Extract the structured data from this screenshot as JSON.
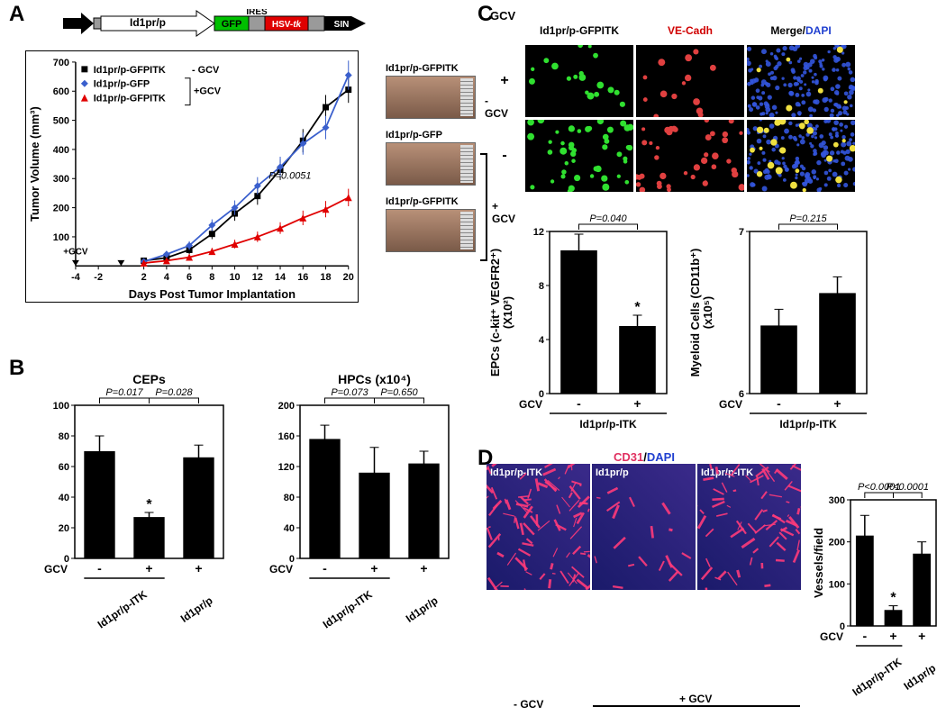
{
  "panelA": {
    "label": "A",
    "construct": {
      "promoter": "Id1pr/p",
      "gfp": "GFP",
      "ires": "IRES",
      "hsv": "HSV-tk",
      "sin": "SIN",
      "colors": {
        "gfp": "#00c000",
        "hsv": "#e00000",
        "grey": "#9a9a9a",
        "black": "#000000"
      }
    },
    "chart": {
      "ylabel": "Tumor Volume (mm³)",
      "xlabel": "Days Post Tumor Implantation",
      "xticks": [
        "-4",
        "-2",
        "2",
        "4",
        "6",
        "8",
        "10",
        "12",
        "14",
        "16",
        "18",
        "20"
      ],
      "yticks": [
        "100",
        "200",
        "300",
        "400",
        "500",
        "600",
        "700"
      ],
      "gcv_label": "+GCV",
      "legend": [
        {
          "label": "Id1pr/p-GFPITK",
          "note": "- GCV",
          "marker": "square",
          "color": "#000000"
        },
        {
          "label": "Id1pr/p-GFP",
          "note": "",
          "marker": "diamond",
          "color": "#3a5fcd"
        },
        {
          "label": "Id1pr/p-GFPITK",
          "note": "",
          "marker": "triangle",
          "color": "#e00000"
        }
      ],
      "legend_bracket": "+GCV",
      "pvalue": "P=0.0051",
      "series": {
        "black": {
          "x": [
            2,
            4,
            6,
            8,
            10,
            12,
            14,
            16,
            18,
            20
          ],
          "y": [
            18,
            28,
            55,
            110,
            180,
            240,
            330,
            430,
            545,
            605
          ],
          "err": [
            8,
            10,
            14,
            18,
            25,
            30,
            35,
            40,
            42,
            45
          ],
          "color": "#000000",
          "marker": "square"
        },
        "blue": {
          "x": [
            2,
            4,
            6,
            8,
            10,
            12,
            14,
            16,
            18,
            20
          ],
          "y": [
            15,
            40,
            70,
            140,
            200,
            275,
            340,
            420,
            475,
            655
          ],
          "err": [
            8,
            12,
            15,
            20,
            25,
            30,
            35,
            38,
            40,
            50
          ],
          "color": "#3a5fcd",
          "marker": "diamond"
        },
        "red": {
          "x": [
            2,
            4,
            6,
            8,
            10,
            12,
            14,
            16,
            18,
            20
          ],
          "y": [
            10,
            18,
            30,
            50,
            75,
            100,
            130,
            165,
            195,
            235
          ],
          "err": [
            5,
            8,
            10,
            12,
            15,
            18,
            20,
            25,
            28,
            30
          ],
          "color": "#e00000",
          "marker": "triangle"
        }
      }
    },
    "tumors": {
      "items": [
        {
          "caption": "Id1pr/p-GFPITK"
        },
        {
          "caption": "Id1pr/p-GFP"
        },
        {
          "caption": "Id1pr/p-GFPITK"
        }
      ],
      "minus": "- GCV",
      "plus": "+ GCV"
    }
  },
  "panelB": {
    "label": "B",
    "gcv_label": "GCV",
    "charts": [
      {
        "title": "CEPs",
        "ylabel": "",
        "yticks": [
          "0",
          "20",
          "40",
          "60",
          "80",
          "100"
        ],
        "bars": [
          {
            "val": 70,
            "err": 10
          },
          {
            "val": 27,
            "err": 3,
            "star": "*"
          },
          {
            "val": 66,
            "err": 8
          }
        ],
        "xlabels": [
          "-",
          "+",
          "+"
        ],
        "p1": "P=0.017",
        "p2": "P=0.028",
        "bottom": [
          "Id1pr/p-ITK",
          "Id1pr/p"
        ]
      },
      {
        "title": "HPCs (x10⁴)",
        "ylabel": "",
        "yticks": [
          "0",
          "40",
          "80",
          "120",
          "160",
          "200"
        ],
        "bars": [
          {
            "val": 156,
            "err": 18
          },
          {
            "val": 112,
            "err": 33
          },
          {
            "val": 124,
            "err": 16
          }
        ],
        "xlabels": [
          "-",
          "+",
          "+"
        ],
        "p1": "P=0.073",
        "p2": "P=0.650",
        "bottom": [
          "Id1pr/p-ITK",
          "Id1pr/p"
        ]
      }
    ]
  },
  "panelC": {
    "label": "C",
    "gcv_label": "GCV",
    "col_headers": [
      "Id1pr/p-GFPITK",
      "VE-Cadh",
      "Merge/DAPI"
    ],
    "col_header_colors": [
      "#000000",
      "#d00000",
      "#000000"
    ],
    "dapi_color": "#2040d0",
    "row_labels": [
      "+",
      "-"
    ],
    "charts": [
      {
        "ylabel": "EPCs (c-kit⁺ VEGFR2⁺)\n(X10²)",
        "yticks": [
          "0",
          "4",
          "8",
          "12"
        ],
        "bars": [
          {
            "val": 10.6,
            "err": 1.2
          },
          {
            "val": 5.0,
            "err": 0.8,
            "star": "*"
          }
        ],
        "xlabels": [
          "-",
          "+"
        ],
        "p": "P=0.040",
        "bottom": "Id1pr/p-ITK"
      },
      {
        "ylabel": "Myeloid Cells (CD11b⁺)\n(x10⁵)",
        "yticks": [
          "6",
          "7"
        ],
        "bars": [
          {
            "val": 6.42,
            "err": 0.1
          },
          {
            "val": 6.62,
            "err": 0.1
          }
        ],
        "xlabels": [
          "-",
          "+"
        ],
        "p": "P=0.215",
        "bottom": "Id1pr/p-ITK",
        "ymin": 6,
        "ymax": 7
      }
    ]
  },
  "panelD": {
    "label": "D",
    "header": "CD31/DAPI",
    "header_colors": {
      "cd31": "#e03060",
      "dapi": "#2040d0"
    },
    "panels": [
      "Id1pr/p-ITK",
      "Id1pr/p",
      "Id1pr/p-ITK"
    ],
    "gcv_minus": "- GCV",
    "gcv_plus": "+ GCV",
    "chart": {
      "ylabel": "Vessels/field",
      "yticks": [
        "0",
        "100",
        "200",
        "300"
      ],
      "bars": [
        {
          "val": 215,
          "err": 48
        },
        {
          "val": 38,
          "err": 10,
          "star": "*"
        },
        {
          "val": 172,
          "err": 28
        }
      ],
      "xlabels": [
        "-",
        "+",
        "+"
      ],
      "p1": "P<0.0001",
      "p2": "P<0.0001",
      "bottom": [
        "Id1pr/p-ITK",
        "Id1pr/p"
      ],
      "gcv_label": "GCV"
    }
  }
}
